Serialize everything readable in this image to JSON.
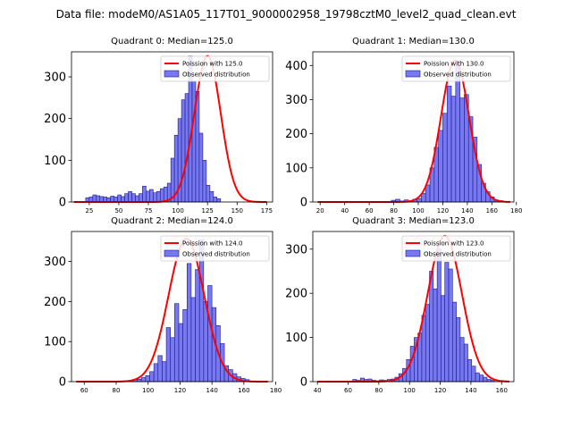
{
  "figure": {
    "suptitle": "Data file: modeM0/AS1A05_117T01_9000002958_19798cztM0_level2_quad_clean.evt"
  },
  "colors": {
    "bar_fill": "#7878f0",
    "bar_edge": "#1a1a8c",
    "poisson_line": "#ff0000"
  },
  "chart_data": [
    {
      "type": "bar",
      "title": "Quadrant 0: Median=125.0",
      "xlim": [
        10,
        180
      ],
      "ylim": [
        0,
        360
      ],
      "xticks": [
        25,
        50,
        75,
        100,
        125,
        150,
        175
      ],
      "yticks": [
        0,
        100,
        200,
        300
      ],
      "bin_start": 22,
      "bin_width": 3,
      "values": [
        10,
        12,
        17,
        15,
        13,
        12,
        10,
        14,
        12,
        17,
        13,
        20,
        25,
        20,
        15,
        20,
        38,
        26,
        30,
        22,
        25,
        32,
        36,
        45,
        105,
        160,
        200,
        245,
        260,
        350,
        290,
        265,
        165,
        100,
        40,
        25,
        12,
        8
      ],
      "poisson": {
        "mean": 125.0,
        "peak": 350,
        "x_start": 12,
        "x_end": 175
      },
      "legend": {
        "line_label": "Poission with 125.0",
        "bar_label": "Observed distribution"
      }
    },
    {
      "type": "bar",
      "title": "Quadrant 1: Median=130.0",
      "xlim": [
        14,
        178
      ],
      "ylim": [
        0,
        440
      ],
      "xticks": [
        20,
        40,
        60,
        80,
        100,
        120,
        140,
        160,
        180
      ],
      "yticks": [
        0,
        100,
        200,
        300,
        400
      ],
      "bin_start": 78,
      "bin_width": 3.5,
      "values": [
        5,
        8,
        3,
        6,
        2,
        8,
        10,
        25,
        50,
        100,
        160,
        210,
        260,
        340,
        310,
        400,
        305,
        315,
        250,
        190,
        110,
        55,
        30,
        15,
        6,
        4
      ],
      "poisson": {
        "mean": 130.0,
        "peak": 415,
        "x_start": 18,
        "x_end": 175
      },
      "legend": {
        "line_label": "Poission with 130.0",
        "bar_label": "Observed distribution"
      }
    },
    {
      "type": "bar",
      "title": "Quadrant 2: Median=124.0",
      "xlim": [
        52,
        178
      ],
      "ylim": [
        0,
        375
      ],
      "xticks": [
        60,
        80,
        100,
        120,
        140,
        160,
        180
      ],
      "yticks": [
        0,
        100,
        200,
        300
      ],
      "bin_start": 88,
      "bin_width": 2.6,
      "values": [
        3,
        5,
        6,
        10,
        15,
        25,
        45,
        65,
        50,
        135,
        110,
        195,
        145,
        180,
        295,
        210,
        280,
        355,
        200,
        240,
        185,
        140,
        95,
        40,
        30,
        20,
        12,
        8,
        5
      ],
      "poisson": {
        "mean": 124.0,
        "peak": 357,
        "x_start": 55,
        "x_end": 175
      },
      "legend": {
        "line_label": "Poission with 124.0",
        "bar_label": "Observed distribution"
      }
    },
    {
      "type": "bar",
      "title": "Quadrant 3: Median=123.0",
      "xlim": [
        37,
        168
      ],
      "ylim": [
        0,
        340
      ],
      "xticks": [
        40,
        60,
        80,
        100,
        120,
        140,
        160
      ],
      "yticks": [
        0,
        100,
        200,
        300
      ],
      "bin_start": 63,
      "bin_width": 2.5,
      "values": [
        5,
        3,
        8,
        5,
        6,
        3,
        2,
        4,
        3,
        5,
        6,
        10,
        18,
        30,
        50,
        80,
        100,
        110,
        150,
        175,
        250,
        210,
        300,
        195,
        270,
        255,
        180,
        145,
        100,
        85,
        50,
        35,
        20,
        15,
        10,
        5,
        3
      ],
      "poisson": {
        "mean": 123.0,
        "peak": 330,
        "x_start": 40,
        "x_end": 165
      },
      "legend": {
        "line_label": "Poission with 123.0",
        "bar_label": "Observed distribution"
      }
    }
  ]
}
